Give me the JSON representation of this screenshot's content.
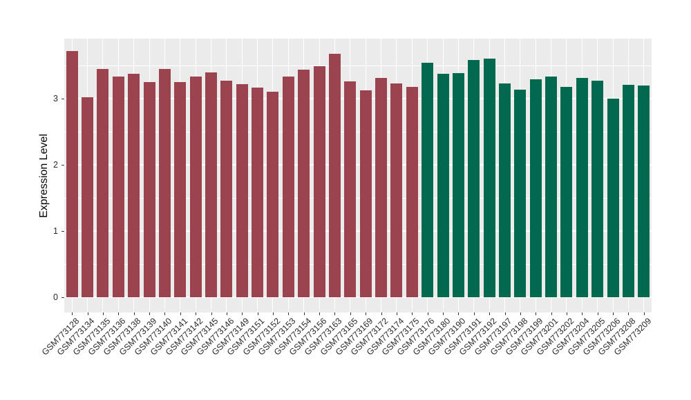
{
  "figure": {
    "background": "#FFFFFF",
    "panel_background": "#EBEBEB",
    "grid_color": "#FFFFFF",
    "tick_color": "#333333",
    "text_color": "#2b2b2b"
  },
  "chart_data": {
    "type": "bar",
    "title": "",
    "xlabel": "",
    "ylabel": "Expression Level",
    "ylim": [
      0,
      3.95
    ],
    "yticks": [
      0,
      1,
      2,
      3
    ],
    "grid": "white major and minor horizontal lines, white vertical line at each category",
    "legend": "none",
    "bar_group_colors": {
      "group-red": "#9B4450",
      "group-green": "#016A4E"
    },
    "series": [
      {
        "name": "group-red",
        "color": "#9B4450",
        "points": [
          [
            "GSM773128",
            3.72
          ],
          [
            "GSM773134",
            3.02
          ],
          [
            "GSM773135",
            3.45
          ],
          [
            "GSM773136",
            3.33
          ],
          [
            "GSM773138",
            3.38
          ],
          [
            "GSM773139",
            3.25
          ],
          [
            "GSM773140",
            3.45
          ],
          [
            "GSM773141",
            3.25
          ],
          [
            "GSM773142",
            3.33
          ],
          [
            "GSM773145",
            3.4
          ],
          [
            "GSM773146",
            3.27
          ],
          [
            "GSM773149",
            3.22
          ],
          [
            "GSM773151",
            3.17
          ],
          [
            "GSM773152",
            3.1
          ],
          [
            "GSM773153",
            3.33
          ],
          [
            "GSM773154",
            3.44
          ],
          [
            "GSM773156",
            3.49
          ],
          [
            "GSM773163",
            3.68
          ],
          [
            "GSM773165",
            3.26
          ],
          [
            "GSM773169",
            3.12
          ],
          [
            "GSM773172",
            3.31
          ],
          [
            "GSM773174",
            3.23
          ],
          [
            "GSM773175",
            3.18
          ]
        ]
      },
      {
        "name": "group-green",
        "color": "#016A4E",
        "points": [
          [
            "GSM773176",
            3.54
          ],
          [
            "GSM773180",
            3.37
          ],
          [
            "GSM773190",
            3.39
          ],
          [
            "GSM773191",
            3.58
          ],
          [
            "GSM773192",
            3.6
          ],
          [
            "GSM773197",
            3.23
          ],
          [
            "GSM773198",
            3.14
          ],
          [
            "GSM773199",
            3.29
          ],
          [
            "GSM773201",
            3.33
          ],
          [
            "GSM773202",
            3.18
          ],
          [
            "GSM773204",
            3.31
          ],
          [
            "GSM773205",
            3.27
          ],
          [
            "GSM773206",
            3.0
          ],
          [
            "GSM773208",
            3.21
          ],
          [
            "GSM773209",
            3.2
          ]
        ]
      }
    ]
  }
}
